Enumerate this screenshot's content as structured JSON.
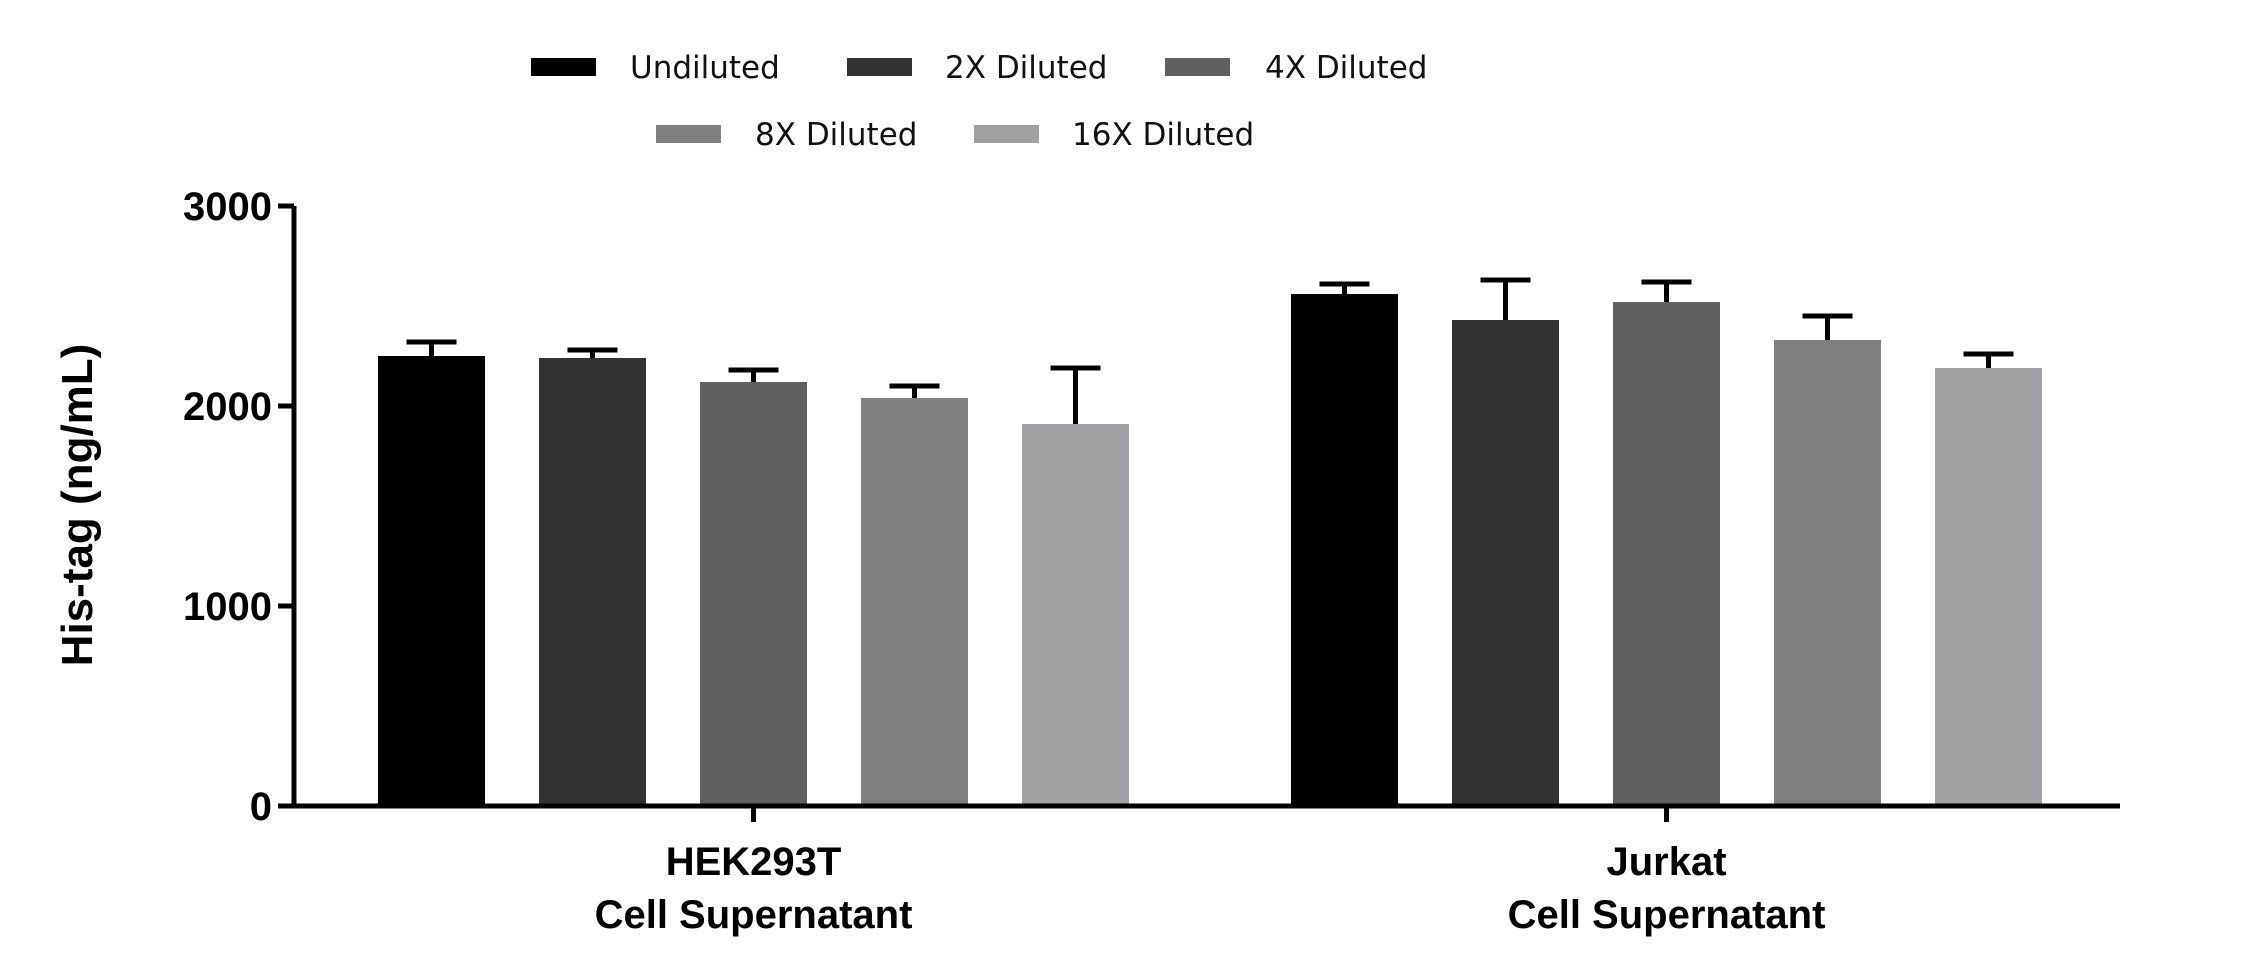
{
  "chart_data": {
    "type": "bar",
    "categories": [
      {
        "line1": "HEK293T",
        "line2": "Cell Supernatant"
      },
      {
        "line1": "Jurkat",
        "line2": "Cell Supernatant"
      }
    ],
    "series": [
      {
        "name": "Undiluted",
        "values": [
          2250,
          2560
        ],
        "errors": [
          70,
          50
        ],
        "color": "#000000"
      },
      {
        "name": "2X Diluted",
        "values": [
          2240,
          2430
        ],
        "errors": [
          40,
          200
        ],
        "color": "#323232"
      },
      {
        "name": "4X Diluted",
        "values": [
          2120,
          2520
        ],
        "errors": [
          60,
          100
        ],
        "color": "#606060"
      },
      {
        "name": "8X Diluted",
        "values": [
          2040,
          2330
        ],
        "errors": [
          60,
          120
        ],
        "color": "#7f7f7f"
      },
      {
        "name": "16X Diluted",
        "values": [
          1910,
          2190
        ],
        "errors": [
          280,
          70
        ],
        "color": "#a0a0a3"
      }
    ],
    "ylabel": "His-tag (ng/mL)",
    "ylim": [
      0,
      3000
    ],
    "yticks": [
      0,
      1000,
      2000,
      3000
    ],
    "grid": false,
    "legend_position": "top"
  }
}
